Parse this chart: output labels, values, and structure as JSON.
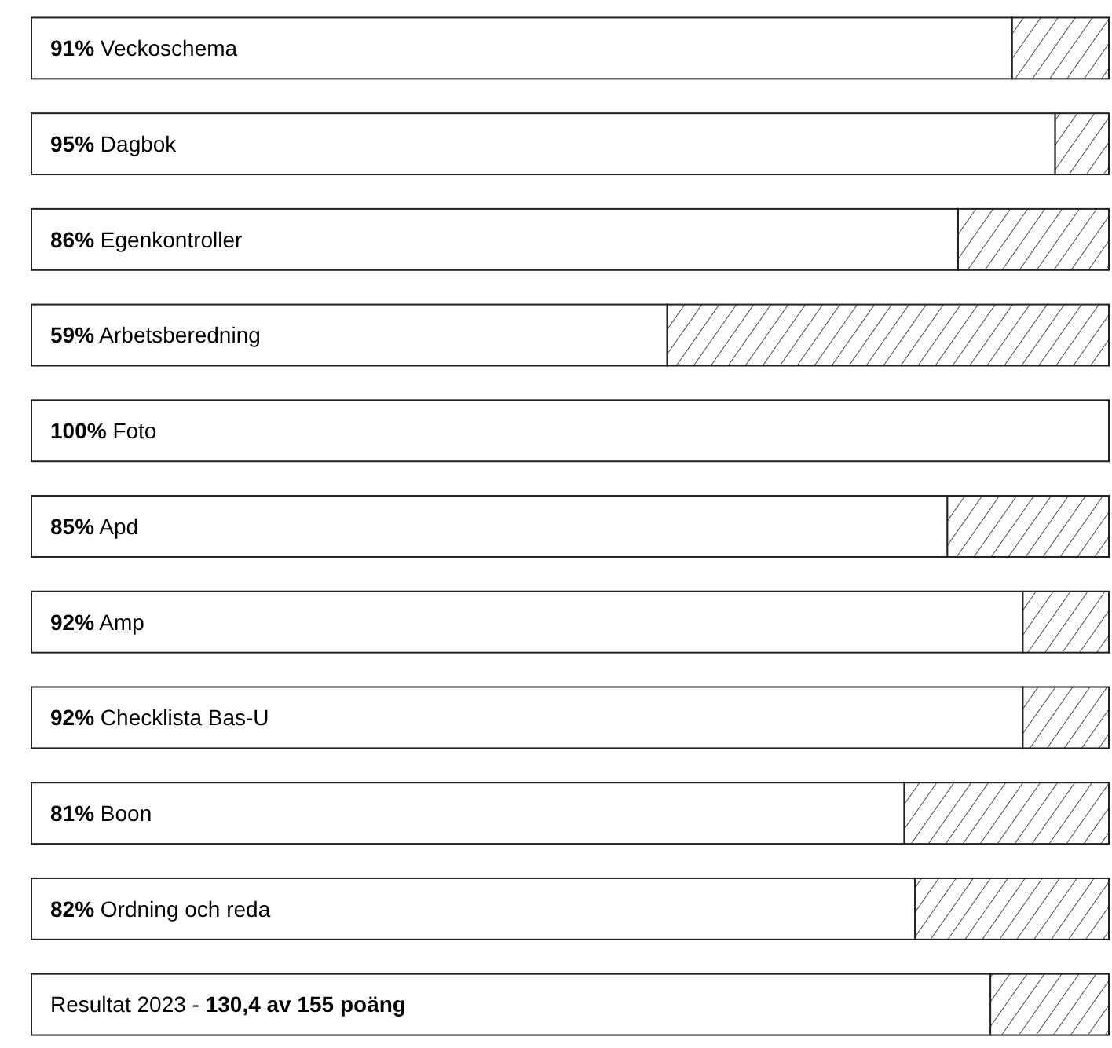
{
  "chart_data": {
    "type": "bar",
    "orientation": "horizontal",
    "categories": [
      "Veckoschema",
      "Dagbok",
      "Egenkontroller",
      "Arbetsberedning",
      "Foto",
      "Apd",
      "Amp",
      "Checklista Bas-U",
      "Boon",
      "Ordning och reda",
      "Resultat 2023 - 130,4 av 155 poäng"
    ],
    "values": [
      91,
      95,
      86,
      59,
      100,
      85,
      92,
      92,
      81,
      82,
      89
    ],
    "value_labels": [
      "91%",
      "95%",
      "86%",
      "59%",
      "100%",
      "85%",
      "92%",
      "92%",
      "81%",
      "82%",
      null
    ],
    "xlim": [
      0,
      100
    ],
    "color": "#ffffff"
  }
}
